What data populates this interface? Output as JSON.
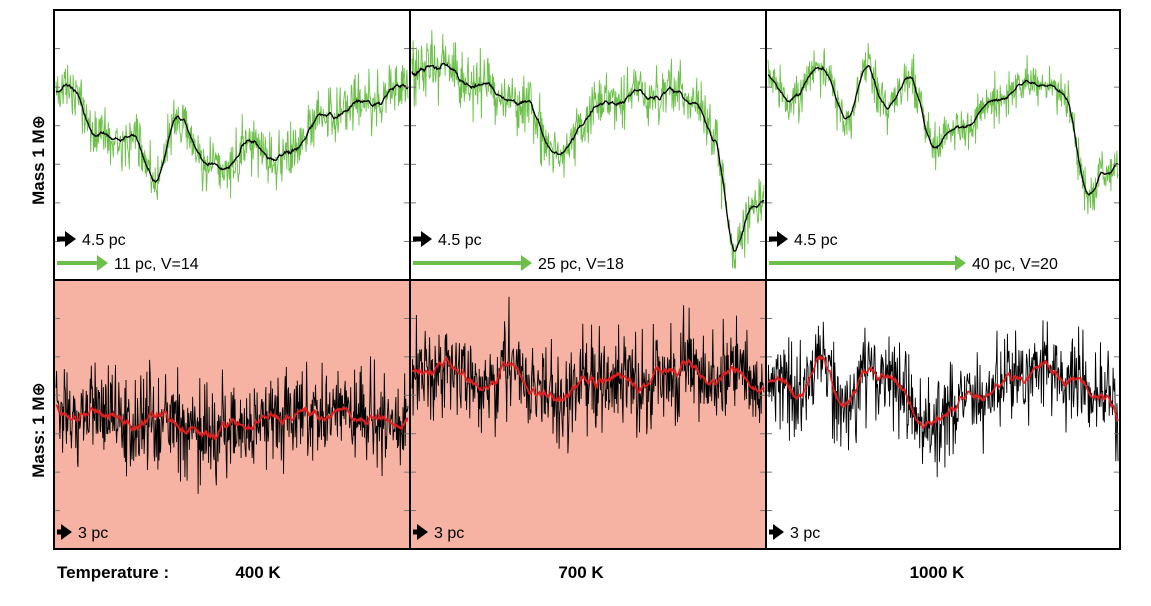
{
  "chart_data": {
    "type": "line",
    "layout": "2x3 grid of simulated spectra (flux vs. wavelength, unlabeled axes)",
    "column_labels": {
      "prefix": "Temperature :",
      "temperatures": [
        "400 K",
        "700 K",
        "1000 K"
      ]
    },
    "row_labels": [
      "Mass   1 M⊕",
      "Mass:  1 M⊕"
    ],
    "colors": {
      "noisy_top": "#6cc04a",
      "smooth_top": "#000000",
      "noisy_bottom": "#000000",
      "smooth_bottom": "#e02020",
      "highlight": "#f6b3a3",
      "arrow_black": "#000000",
      "arrow_green": "#6cc04a"
    },
    "panels": [
      {
        "row": 0,
        "col": 0,
        "temperature": "400 K",
        "highlight": false,
        "arrows": [
          {
            "color": "black",
            "label": "4.5 pc"
          },
          {
            "color": "green",
            "label": "11 pc, V=14"
          }
        ],
        "profile_anchors": [
          [
            0,
            0.7
          ],
          [
            0.05,
            0.72
          ],
          [
            0.12,
            0.52
          ],
          [
            0.2,
            0.55
          ],
          [
            0.28,
            0.38
          ],
          [
            0.35,
            0.6
          ],
          [
            0.45,
            0.4
          ],
          [
            0.55,
            0.5
          ],
          [
            0.65,
            0.45
          ],
          [
            0.75,
            0.6
          ],
          [
            0.85,
            0.65
          ],
          [
            1,
            0.72
          ]
        ],
        "noise": {
          "small": 0.07,
          "big": 0.12
        }
      },
      {
        "row": 0,
        "col": 1,
        "temperature": "700 K",
        "highlight": false,
        "arrows": [
          {
            "color": "black",
            "label": "4.5 pc"
          },
          {
            "color": "green",
            "label": "25 pc, V=18"
          }
        ],
        "profile_anchors": [
          [
            0,
            0.75
          ],
          [
            0.06,
            0.82
          ],
          [
            0.15,
            0.75
          ],
          [
            0.25,
            0.7
          ],
          [
            0.33,
            0.65
          ],
          [
            0.42,
            0.45
          ],
          [
            0.5,
            0.62
          ],
          [
            0.6,
            0.68
          ],
          [
            0.7,
            0.7
          ],
          [
            0.8,
            0.68
          ],
          [
            0.86,
            0.5
          ],
          [
            0.92,
            0.1
          ],
          [
            0.97,
            0.25
          ],
          [
            1,
            0.3
          ]
        ],
        "noise": {
          "small": 0.07,
          "big": 0.12
        }
      },
      {
        "row": 0,
        "col": 2,
        "temperature": "1000 K",
        "highlight": false,
        "arrows": [
          {
            "color": "black",
            "label": "4.5 pc"
          },
          {
            "color": "green",
            "label": "40 pc, V=20"
          }
        ],
        "profile_anchors": [
          [
            0,
            0.75
          ],
          [
            0.08,
            0.68
          ],
          [
            0.15,
            0.82
          ],
          [
            0.22,
            0.6
          ],
          [
            0.28,
            0.8
          ],
          [
            0.33,
            0.65
          ],
          [
            0.4,
            0.75
          ],
          [
            0.48,
            0.5
          ],
          [
            0.58,
            0.6
          ],
          [
            0.68,
            0.7
          ],
          [
            0.78,
            0.75
          ],
          [
            0.85,
            0.68
          ],
          [
            0.92,
            0.3
          ],
          [
            0.97,
            0.4
          ],
          [
            1,
            0.45
          ]
        ],
        "noise": {
          "small": 0.06,
          "big": 0.1
        }
      },
      {
        "row": 1,
        "col": 0,
        "temperature": "400 K",
        "highlight": true,
        "arrows": [
          {
            "color": "black",
            "label": "3 pc"
          }
        ],
        "profile_anchors": [
          [
            0,
            0.52
          ],
          [
            0.08,
            0.48
          ],
          [
            0.12,
            0.52
          ],
          [
            0.2,
            0.46
          ],
          [
            0.3,
            0.5
          ],
          [
            0.4,
            0.42
          ],
          [
            0.5,
            0.46
          ],
          [
            0.6,
            0.48
          ],
          [
            0.7,
            0.5
          ],
          [
            0.8,
            0.5
          ],
          [
            0.9,
            0.48
          ],
          [
            1,
            0.47
          ]
        ],
        "noise": {
          "small": 0.1,
          "big": 0.22
        }
      },
      {
        "row": 1,
        "col": 1,
        "temperature": "700 K",
        "highlight": true,
        "arrows": [
          {
            "color": "black",
            "label": "3 pc"
          }
        ],
        "profile_anchors": [
          [
            0,
            0.7
          ],
          [
            0.05,
            0.65
          ],
          [
            0.1,
            0.72
          ],
          [
            0.18,
            0.6
          ],
          [
            0.28,
            0.68
          ],
          [
            0.38,
            0.55
          ],
          [
            0.45,
            0.6
          ],
          [
            0.55,
            0.65
          ],
          [
            0.65,
            0.62
          ],
          [
            0.75,
            0.7
          ],
          [
            0.85,
            0.64
          ],
          [
            0.93,
            0.66
          ],
          [
            1,
            0.58
          ]
        ],
        "noise": {
          "small": 0.1,
          "big": 0.22
        }
      },
      {
        "row": 1,
        "col": 2,
        "temperature": "1000 K",
        "highlight": false,
        "arrows": [
          {
            "color": "black",
            "label": "3 pc"
          }
        ],
        "profile_anchors": [
          [
            0,
            0.65
          ],
          [
            0.08,
            0.58
          ],
          [
            0.15,
            0.7
          ],
          [
            0.22,
            0.55
          ],
          [
            0.3,
            0.68
          ],
          [
            0.38,
            0.6
          ],
          [
            0.45,
            0.45
          ],
          [
            0.55,
            0.55
          ],
          [
            0.65,
            0.6
          ],
          [
            0.72,
            0.65
          ],
          [
            0.8,
            0.68
          ],
          [
            0.88,
            0.62
          ],
          [
            0.95,
            0.58
          ],
          [
            1,
            0.48
          ]
        ],
        "noise": {
          "small": 0.1,
          "big": 0.2
        }
      }
    ]
  }
}
